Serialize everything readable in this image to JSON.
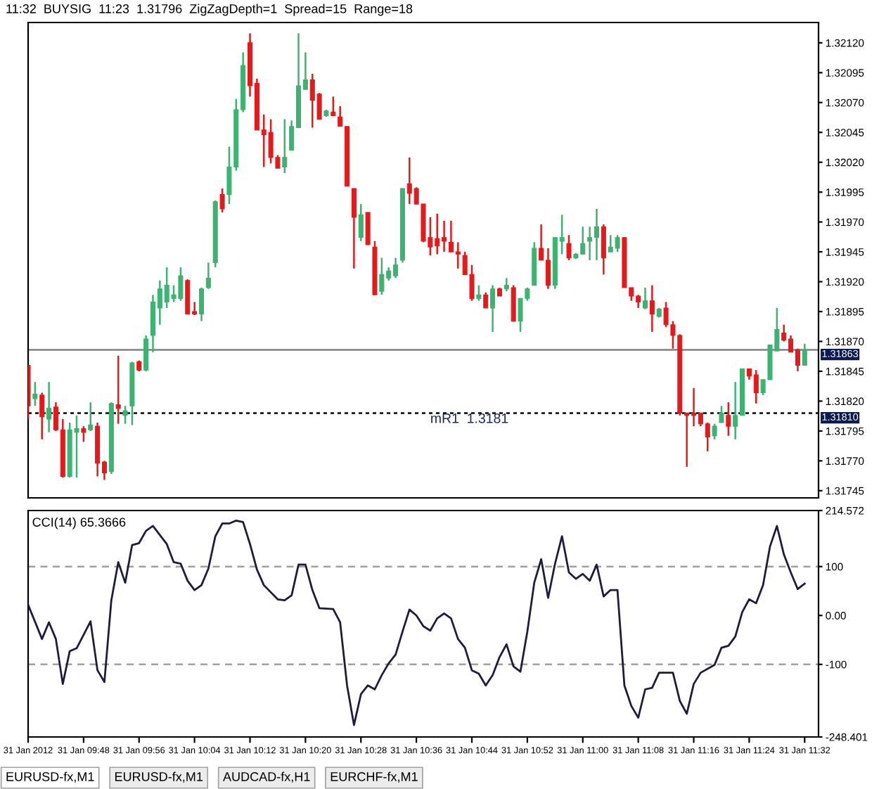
{
  "chart_data": [
    {
      "type": "candlestick",
      "annotations": [
        "11:32  BUYSIG  11:23  1.31796  ZigZagDepth=1  Spread=15  Range=18",
        {
          "text": "mR1  1.3181",
          "x": "2012-01-31T10:38",
          "y": 1.3181
        }
      ],
      "x": [
        "2012-01-31T09:40",
        "2012-01-31T09:41",
        "2012-01-31T09:42",
        "2012-01-31T09:43",
        "2012-01-31T09:44",
        "2012-01-31T09:45",
        "2012-01-31T09:46",
        "2012-01-31T09:47",
        "2012-01-31T09:48",
        "2012-01-31T09:49",
        "2012-01-31T09:50",
        "2012-01-31T09:51",
        "2012-01-31T09:52",
        "2012-01-31T09:53",
        "2012-01-31T09:54",
        "2012-01-31T09:55",
        "2012-01-31T09:56",
        "2012-01-31T09:57",
        "2012-01-31T09:58",
        "2012-01-31T09:59",
        "2012-01-31T10:00",
        "2012-01-31T10:01",
        "2012-01-31T10:02",
        "2012-01-31T10:03",
        "2012-01-31T10:04",
        "2012-01-31T10:05",
        "2012-01-31T10:06",
        "2012-01-31T10:07",
        "2012-01-31T10:08",
        "2012-01-31T10:09",
        "2012-01-31T10:10",
        "2012-01-31T10:11",
        "2012-01-31T10:12",
        "2012-01-31T10:13",
        "2012-01-31T10:14",
        "2012-01-31T10:15",
        "2012-01-31T10:16",
        "2012-01-31T10:17",
        "2012-01-31T10:18",
        "2012-01-31T10:19",
        "2012-01-31T10:20",
        "2012-01-31T10:21",
        "2012-01-31T10:22",
        "2012-01-31T10:23",
        "2012-01-31T10:24",
        "2012-01-31T10:25",
        "2012-01-31T10:26",
        "2012-01-31T10:27",
        "2012-01-31T10:28",
        "2012-01-31T10:29",
        "2012-01-31T10:30",
        "2012-01-31T10:31",
        "2012-01-31T10:32",
        "2012-01-31T10:33",
        "2012-01-31T10:34",
        "2012-01-31T10:35",
        "2012-01-31T10:36",
        "2012-01-31T10:37",
        "2012-01-31T10:38",
        "2012-01-31T10:39",
        "2012-01-31T10:40",
        "2012-01-31T10:41",
        "2012-01-31T10:42",
        "2012-01-31T10:43",
        "2012-01-31T10:44",
        "2012-01-31T10:45",
        "2012-01-31T10:46",
        "2012-01-31T10:47",
        "2012-01-31T10:48",
        "2012-01-31T10:49",
        "2012-01-31T10:50",
        "2012-01-31T10:51",
        "2012-01-31T10:52",
        "2012-01-31T10:53",
        "2012-01-31T10:54",
        "2012-01-31T10:55",
        "2012-01-31T10:56",
        "2012-01-31T10:57",
        "2012-01-31T10:58",
        "2012-01-31T10:59",
        "2012-01-31T11:00",
        "2012-01-31T11:01",
        "2012-01-31T11:02",
        "2012-01-31T11:03",
        "2012-01-31T11:04",
        "2012-01-31T11:05",
        "2012-01-31T11:06",
        "2012-01-31T11:07",
        "2012-01-31T11:08",
        "2012-01-31T11:09",
        "2012-01-31T11:10",
        "2012-01-31T11:11",
        "2012-01-31T11:12",
        "2012-01-31T11:13",
        "2012-01-31T11:14",
        "2012-01-31T11:15",
        "2012-01-31T11:16",
        "2012-01-31T11:17",
        "2012-01-31T11:18",
        "2012-01-31T11:19",
        "2012-01-31T11:20",
        "2012-01-31T11:21",
        "2012-01-31T11:22",
        "2012-01-31T11:23",
        "2012-01-31T11:24",
        "2012-01-31T11:25",
        "2012-01-31T11:26",
        "2012-01-31T11:27",
        "2012-01-31T11:28",
        "2012-01-31T11:29",
        "2012-01-31T11:30",
        "2012-01-31T11:31",
        "2012-01-31T11:32"
      ],
      "ohlc": [
        [
          1.3185,
          1.3185,
          1.31805,
          1.31816
        ],
        [
          1.31822,
          1.31836,
          1.31816,
          1.31826
        ],
        [
          1.31825,
          1.31827,
          1.31788,
          1.31807
        ],
        [
          1.31805,
          1.31836,
          1.31794,
          1.31814
        ],
        [
          1.31815,
          1.31819,
          1.31795,
          1.31796
        ],
        [
          1.31796,
          1.31805,
          1.31756,
          1.31757
        ],
        [
          1.31757,
          1.31802,
          1.31756,
          1.31796
        ],
        [
          1.31794,
          1.31808,
          1.31756,
          1.31797
        ],
        [
          1.31797,
          1.31799,
          1.31786,
          1.31794
        ],
        [
          1.31796,
          1.31819,
          1.31795,
          1.318
        ],
        [
          1.31799,
          1.31802,
          1.31757,
          1.31768
        ],
        [
          1.31769,
          1.3177,
          1.31754,
          1.3176
        ],
        [
          1.31761,
          1.31819,
          1.31759,
          1.31818
        ],
        [
          1.31817,
          1.31858,
          1.31801,
          1.31814
        ],
        [
          1.31808,
          1.31816,
          1.31801,
          1.31812
        ],
        [
          1.31816,
          1.31853,
          1.318,
          1.31852
        ],
        [
          1.31853,
          1.31854,
          1.31845,
          1.31846
        ],
        [
          1.31846,
          1.31875,
          1.31845,
          1.31872
        ],
        [
          1.31875,
          1.31909,
          1.31861,
          1.31903
        ],
        [
          1.31898,
          1.31921,
          1.31884,
          1.31914
        ],
        [
          1.31903,
          1.31932,
          1.31898,
          1.31917
        ],
        [
          1.31906,
          1.31917,
          1.31903,
          1.31909
        ],
        [
          1.31906,
          1.31932,
          1.31904,
          1.31925
        ],
        [
          1.31921,
          1.31922,
          1.31893,
          1.31893
        ],
        [
          1.31895,
          1.31903,
          1.31892,
          1.31893
        ],
        [
          1.31893,
          1.31915,
          1.31887,
          1.31914
        ],
        [
          1.31915,
          1.31936,
          1.31914,
          1.31923
        ],
        [
          1.31936,
          1.31988,
          1.31932,
          1.31987
        ],
        [
          1.31993,
          1.31998,
          1.31978,
          1.31981
        ],
        [
          1.31993,
          1.32033,
          1.31985,
          1.32016
        ],
        [
          1.32016,
          1.32073,
          1.32013,
          1.32064
        ],
        [
          1.32064,
          1.32112,
          1.32062,
          1.32101
        ],
        [
          1.3212,
          1.32128,
          1.32075,
          1.32084
        ],
        [
          1.32086,
          1.3209,
          1.32047,
          1.32047
        ],
        [
          1.32047,
          1.3206,
          1.32016,
          1.32043
        ],
        [
          1.32045,
          1.32056,
          1.32019,
          1.32024
        ],
        [
          1.32024,
          1.32026,
          1.32015,
          1.32015
        ],
        [
          1.32016,
          1.32056,
          1.32011,
          1.32024
        ],
        [
          1.3203,
          1.32055,
          1.3203,
          1.3205
        ],
        [
          1.32049,
          1.32128,
          1.32049,
          1.32084
        ],
        [
          1.32081,
          1.32112,
          1.32081,
          1.32089
        ],
        [
          1.32089,
          1.32094,
          1.32049,
          1.32072
        ],
        [
          1.32077,
          1.32078,
          1.32056,
          1.32056
        ],
        [
          1.32059,
          1.32064,
          1.32058,
          1.32063
        ],
        [
          1.32062,
          1.32075,
          1.32059,
          1.32059
        ],
        [
          1.32058,
          1.32067,
          1.3205,
          1.3205
        ],
        [
          1.3205,
          1.3205,
          1.32,
          1.32
        ],
        [
          1.31998,
          1.31998,
          1.31931,
          1.31974
        ],
        [
          1.31957,
          1.31985,
          1.31954,
          1.31976
        ],
        [
          1.31978,
          1.31978,
          1.31951,
          1.31951
        ],
        [
          1.31949,
          1.31954,
          1.31909,
          1.31909
        ],
        [
          1.31912,
          1.3194,
          1.31909,
          1.31926
        ],
        [
          1.31923,
          1.31932,
          1.31921,
          1.31929
        ],
        [
          1.31925,
          1.3194,
          1.31923,
          1.31934
        ],
        [
          1.31938,
          1.31998,
          1.31936,
          1.31998
        ],
        [
          1.32002,
          1.32024,
          1.31985,
          1.31994
        ],
        [
          1.31998,
          1.31999,
          1.31985,
          1.31985
        ],
        [
          1.31985,
          1.31985,
          1.31953,
          1.31954
        ],
        [
          1.31957,
          1.31974,
          1.31942,
          1.31949
        ],
        [
          1.31956,
          1.31977,
          1.31943,
          1.3195
        ],
        [
          1.31957,
          1.31971,
          1.31945,
          1.31954
        ],
        [
          1.31953,
          1.31971,
          1.31945,
          1.31945
        ],
        [
          1.31945,
          1.31953,
          1.31931,
          1.31943
        ],
        [
          1.31942,
          1.31945,
          1.31926,
          1.31926
        ],
        [
          1.31926,
          1.31934,
          1.31904,
          1.31906
        ],
        [
          1.31906,
          1.31917,
          1.31904,
          1.31909
        ],
        [
          1.31909,
          1.31911,
          1.31898,
          1.31898
        ],
        [
          1.31898,
          1.31917,
          1.31878,
          1.31914
        ],
        [
          1.31914,
          1.31915,
          1.31908,
          1.31908
        ],
        [
          1.31914,
          1.31923,
          1.31912,
          1.31917
        ],
        [
          1.31915,
          1.31917,
          1.31887,
          1.31887
        ],
        [
          1.31887,
          1.31906,
          1.31878,
          1.31906
        ],
        [
          1.31906,
          1.31915,
          1.31904,
          1.31914
        ],
        [
          1.31917,
          1.31953,
          1.31917,
          1.31948
        ],
        [
          1.31948,
          1.31968,
          1.31938,
          1.31938
        ],
        [
          1.31938,
          1.31948,
          1.31914,
          1.31917
        ],
        [
          1.31917,
          1.31957,
          1.31914,
          1.31957
        ],
        [
          1.31954,
          1.31976,
          1.31943,
          1.31957
        ],
        [
          1.31952,
          1.31959,
          1.31938,
          1.3194
        ],
        [
          1.3194,
          1.31944,
          1.31939,
          1.31943
        ],
        [
          1.31943,
          1.31966,
          1.31943,
          1.31952
        ],
        [
          1.31954,
          1.31966,
          1.31938,
          1.31957
        ],
        [
          1.31957,
          1.31981,
          1.31938,
          1.31966
        ],
        [
          1.31966,
          1.31968,
          1.31926,
          1.3194
        ],
        [
          1.31945,
          1.31959,
          1.31945,
          1.31949
        ],
        [
          1.31948,
          1.31959,
          1.31945,
          1.31957
        ],
        [
          1.31957,
          1.31957,
          1.31915,
          1.31915
        ],
        [
          1.31915,
          1.31915,
          1.31904,
          1.31908
        ],
        [
          1.31908,
          1.31909,
          1.31898,
          1.31903
        ],
        [
          1.31898,
          1.31915,
          1.31897,
          1.31904
        ],
        [
          1.31904,
          1.31917,
          1.31878,
          1.31893
        ],
        [
          1.31891,
          1.31898,
          1.3189,
          1.31897
        ],
        [
          1.31898,
          1.31903,
          1.31882,
          1.31884
        ],
        [
          1.31884,
          1.31887,
          1.31864,
          1.31875
        ],
        [
          1.31875,
          1.31876,
          1.31808,
          1.3181
        ],
        [
          1.3181,
          1.3181,
          1.31765,
          1.31808
        ],
        [
          1.3181,
          1.31831,
          1.31799,
          1.31808
        ],
        [
          1.3181,
          1.3181,
          1.31799,
          1.31801
        ],
        [
          1.31801,
          1.31802,
          1.31778,
          1.3179
        ],
        [
          1.31791,
          1.31801,
          1.31788,
          1.31799
        ],
        [
          1.31802,
          1.31816,
          1.31802,
          1.3181
        ],
        [
          1.31808,
          1.31819,
          1.31791,
          1.31799
        ],
        [
          1.31799,
          1.31836,
          1.31788,
          1.31808
        ],
        [
          1.31808,
          1.31847,
          1.31808,
          1.31847
        ],
        [
          1.31847,
          1.31847,
          1.31838,
          1.31841
        ],
        [
          1.31842,
          1.31846,
          1.31818,
          1.31827
        ],
        [
          1.31827,
          1.31838,
          1.31825,
          1.31838
        ],
        [
          1.31838,
          1.31867,
          1.31838,
          1.31867
        ],
        [
          1.31862,
          1.31898,
          1.31862,
          1.3188
        ],
        [
          1.31877,
          1.31884,
          1.3187,
          1.31871
        ],
        [
          1.31872,
          1.31875,
          1.31861,
          1.31861
        ],
        [
          1.31863,
          1.31864,
          1.31845,
          1.3185
        ],
        [
          1.3185,
          1.31868,
          1.3185,
          1.31863
        ]
      ],
      "colors": [
        "#e31a1c",
        "#3cb371",
        "#e31a1c",
        "#3cb371",
        "#e31a1c",
        "#e31a1c",
        "#3cb371",
        "#3cb371",
        "#e31a1c",
        "#3cb371",
        "#e31a1c",
        "#e31a1c",
        "#3cb371",
        "#e31a1c",
        "#3cb371",
        "#3cb371",
        "#e31a1c",
        "#3cb371",
        "#3cb371",
        "#3cb371",
        "#3cb371",
        "#3cb371",
        "#3cb371",
        "#e31a1c",
        "#e31a1c",
        "#3cb371",
        "#3cb371",
        "#3cb371",
        "#e31a1c",
        "#3cb371",
        "#3cb371",
        "#3cb371",
        "#e31a1c",
        "#e31a1c",
        "#e31a1c",
        "#e31a1c",
        "#e31a1c",
        "#3cb371",
        "#3cb371",
        "#3cb371",
        "#3cb371",
        "#e31a1c",
        "#e31a1c",
        "#3cb371",
        "#e31a1c",
        "#e31a1c",
        "#e31a1c",
        "#e31a1c",
        "#3cb371",
        "#e31a1c",
        "#e31a1c",
        "#3cb371",
        "#3cb371",
        "#3cb371",
        "#3cb371",
        "#e31a1c",
        "#e31a1c",
        "#e31a1c",
        "#e31a1c",
        "#e31a1c",
        "#e31a1c",
        "#e31a1c",
        "#e31a1c",
        "#e31a1c",
        "#e31a1c",
        "#3cb371",
        "#e31a1c",
        "#3cb371",
        "#e31a1c",
        "#3cb371",
        "#e31a1c",
        "#3cb371",
        "#3cb371",
        "#3cb371",
        "#e31a1c",
        "#e31a1c",
        "#3cb371",
        "#3cb371",
        "#e31a1c",
        "#3cb371",
        "#3cb371",
        "#3cb371",
        "#3cb371",
        "#e31a1c",
        "#3cb371",
        "#3cb371",
        "#e31a1c",
        "#e31a1c",
        "#e31a1c",
        "#3cb371",
        "#e31a1c",
        "#3cb371",
        "#e31a1c",
        "#e31a1c",
        "#e31a1c",
        "#e31a1c",
        "#e31a1c",
        "#e31a1c",
        "#e31a1c",
        "#3cb371",
        "#3cb371",
        "#e31a1c",
        "#3cb371",
        "#3cb371",
        "#e31a1c",
        "#e31a1c",
        "#3cb371",
        "#3cb371",
        "#3cb371",
        "#e31a1c",
        "#e31a1c",
        "#e31a1c",
        "#3cb371"
      ],
      "xlim": [
        "2012-01-31T09:40",
        "2012-01-31T11:34"
      ],
      "ylim": [
        1.31739,
        1.32137
      ],
      "yticks": [
        {
          "value": 1.3212,
          "label": "1.32120"
        },
        {
          "value": 1.32095,
          "label": "1.32095"
        },
        {
          "value": 1.3207,
          "label": "1.32070"
        },
        {
          "value": 1.32045,
          "label": "1.32045"
        },
        {
          "value": 1.3202,
          "label": "1.32020"
        },
        {
          "value": 1.31995,
          "label": "1.31995"
        },
        {
          "value": 1.3197,
          "label": "1.31970"
        },
        {
          "value": 1.31945,
          "label": "1.31945"
        },
        {
          "value": 1.3192,
          "label": "1.31920"
        },
        {
          "value": 1.31895,
          "label": "1.31895"
        },
        {
          "value": 1.3187,
          "label": "1.31870"
        },
        {
          "value": 1.31845,
          "label": "1.31845"
        },
        {
          "value": 1.3182,
          "label": "1.31820"
        },
        {
          "value": 1.31795,
          "label": "1.31795"
        },
        {
          "value": 1.3177,
          "label": "1.31770"
        },
        {
          "value": 1.31745,
          "label": "1.31745"
        }
      ],
      "ref_lines": [
        {
          "axis": "y",
          "value": 1.31863,
          "label": "1.31863",
          "color": "#808080",
          "line_style": "solid"
        },
        {
          "axis": "y",
          "value": 1.3181,
          "label": "1.31810",
          "color": "#000000",
          "line_style": "dotted"
        }
      ],
      "tick_labels": "y"
    },
    {
      "type": "line",
      "title": "CCI(14) 65.3666",
      "color": "#1c1c3c",
      "x": [
        "2012-01-31T09:40",
        "2012-01-31T09:42",
        "2012-01-31T09:43",
        "2012-01-31T09:44",
        "2012-01-31T09:45",
        "2012-01-31T09:46",
        "2012-01-31T09:47",
        "2012-01-31T09:49",
        "2012-01-31T09:50",
        "2012-01-31T09:51",
        "2012-01-31T09:52",
        "2012-01-31T09:53",
        "2012-01-31T09:54",
        "2012-01-31T09:55",
        "2012-01-31T09:56",
        "2012-01-31T09:57",
        "2012-01-31T09:58",
        "2012-01-31T10:00",
        "2012-01-31T10:01",
        "2012-01-31T10:02",
        "2012-01-31T10:03",
        "2012-01-31T10:04",
        "2012-01-31T10:05",
        "2012-01-31T10:06",
        "2012-01-31T10:07",
        "2012-01-31T10:08",
        "2012-01-31T10:09",
        "2012-01-31T10:10",
        "2012-01-31T10:11",
        "2012-01-31T10:12",
        "2012-01-31T10:13",
        "2012-01-31T10:14",
        "2012-01-31T10:16",
        "2012-01-31T10:17",
        "2012-01-31T10:18",
        "2012-01-31T10:19",
        "2012-01-31T10:20",
        "2012-01-31T10:21",
        "2012-01-31T10:22",
        "2012-01-31T10:24",
        "2012-01-31T10:25",
        "2012-01-31T10:26",
        "2012-01-31T10:27",
        "2012-01-31T10:28",
        "2012-01-31T10:29",
        "2012-01-31T10:30",
        "2012-01-31T10:31",
        "2012-01-31T10:32",
        "2012-01-31T10:33",
        "2012-01-31T10:34",
        "2012-01-31T10:35",
        "2012-01-31T10:36",
        "2012-01-31T10:37",
        "2012-01-31T10:38",
        "2012-01-31T10:39",
        "2012-01-31T10:40",
        "2012-01-31T10:41",
        "2012-01-31T10:42",
        "2012-01-31T10:43",
        "2012-01-31T10:44",
        "2012-01-31T10:45",
        "2012-01-31T10:46",
        "2012-01-31T10:47",
        "2012-01-31T10:48",
        "2012-01-31T10:49",
        "2012-01-31T10:50",
        "2012-01-31T10:51",
        "2012-01-31T10:52",
        "2012-01-31T10:53",
        "2012-01-31T10:54",
        "2012-01-31T10:55",
        "2012-01-31T10:56",
        "2012-01-31T10:57",
        "2012-01-31T10:58",
        "2012-01-31T10:59",
        "2012-01-31T11:00",
        "2012-01-31T11:01",
        "2012-01-31T11:02",
        "2012-01-31T11:03",
        "2012-01-31T11:04",
        "2012-01-31T11:05",
        "2012-01-31T11:06",
        "2012-01-31T11:07",
        "2012-01-31T11:08",
        "2012-01-31T11:09",
        "2012-01-31T11:10",
        "2012-01-31T11:11",
        "2012-01-31T11:13",
        "2012-01-31T11:14",
        "2012-01-31T11:15",
        "2012-01-31T11:16",
        "2012-01-31T11:17",
        "2012-01-31T11:19",
        "2012-01-31T11:20",
        "2012-01-31T11:21",
        "2012-01-31T11:22",
        "2012-01-31T11:23",
        "2012-01-31T11:24",
        "2012-01-31T11:25",
        "2012-01-31T11:26",
        "2012-01-31T11:27",
        "2012-01-31T11:28",
        "2012-01-31T11:29",
        "2012-01-31T11:30",
        "2012-01-31T11:31",
        "2012-01-31T11:32"
      ],
      "values": [
        22,
        -48,
        -14,
        -48,
        -140,
        -73,
        -67,
        -12,
        -112,
        -136,
        31,
        109,
        67,
        144,
        148,
        173,
        183,
        146,
        109,
        106,
        71,
        52,
        62,
        96,
        162,
        188,
        188,
        194,
        191,
        146,
        94,
        62,
        33,
        31,
        41,
        104,
        104,
        52,
        15,
        13,
        -14,
        -143,
        -224,
        -161,
        -143,
        -151,
        -122,
        -98,
        -80,
        -33,
        12,
        0,
        -22,
        -31,
        -6,
        4,
        -6,
        -48,
        -66,
        -112,
        -119,
        -143,
        -122,
        -85,
        -59,
        -104,
        -115,
        -33,
        67,
        115,
        36,
        106,
        162,
        88,
        75,
        85,
        71,
        104,
        39,
        52,
        52,
        -143,
        -185,
        -209,
        -151,
        -148,
        -117,
        -117,
        -175,
        -201,
        -140,
        -117,
        -101,
        -66,
        -62,
        -43,
        7,
        33,
        25,
        62,
        141,
        183,
        125,
        88,
        54,
        65
      ],
      "xlim": [
        "2012-01-31T09:40",
        "2012-01-31T11:34"
      ],
      "xticks": [
        {
          "value": "2012-01-31T09:40",
          "label": "31 Jan 2012"
        },
        {
          "value": "2012-01-31T09:48",
          "label": "31 Jan 09:48"
        },
        {
          "value": "2012-01-31T09:56",
          "label": "31 Jan 09:56"
        },
        {
          "value": "2012-01-31T10:04",
          "label": "31 Jan 10:04"
        },
        {
          "value": "2012-01-31T10:12",
          "label": "31 Jan 10:12"
        },
        {
          "value": "2012-01-31T10:20",
          "label": "31 Jan 10:20"
        },
        {
          "value": "2012-01-31T10:28",
          "label": "31 Jan 10:28"
        },
        {
          "value": "2012-01-31T10:36",
          "label": "31 Jan 10:36"
        },
        {
          "value": "2012-01-31T10:44",
          "label": "31 Jan 10:44"
        },
        {
          "value": "2012-01-31T10:52",
          "label": "31 Jan 10:52"
        },
        {
          "value": "2012-01-31T11:00",
          "label": "31 Jan 11:00"
        },
        {
          "value": "2012-01-31T11:08",
          "label": "31 Jan 11:08"
        },
        {
          "value": "2012-01-31T11:16",
          "label": "31 Jan 11:16"
        },
        {
          "value": "2012-01-31T11:24",
          "label": "31 Jan 11:24"
        },
        {
          "value": "2012-01-31T11:32",
          "label": "31 Jan 11:32"
        }
      ],
      "ylim": [
        -248.401,
        214.572
      ],
      "yticks": [
        214.572,
        100,
        {
          "value": 0,
          "label": "0.00"
        },
        -100,
        -248.401
      ],
      "ref_lines": [
        {
          "axis": "y",
          "value": 100,
          "color": "#a0a0a0",
          "line_style": "dashed"
        },
        {
          "axis": "y",
          "value": -100,
          "color": "#a0a0a0",
          "line_style": "dashed"
        }
      ],
      "annotations": [
        "EURUSD-fx,M1",
        "EURUSD-fx,M1",
        "AUDCAD-fx,H1",
        "EURCHF-fx,M1"
      ]
    }
  ]
}
